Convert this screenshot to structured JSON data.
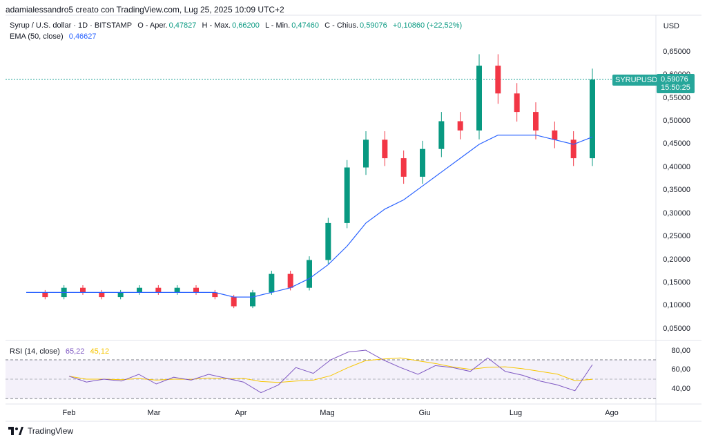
{
  "header": {
    "text": "adamialessandro5 creato con TradingView.com, Lug 25, 2025 10:09 UTC+2"
  },
  "legend": {
    "symbol": "Syrup / U.S. dollar · 1D · BITSTAMP",
    "open_label": "O - Aper.",
    "open": "0,47827",
    "high_label": "H - Max.",
    "high": "0,66200",
    "low_label": "L - Min.",
    "low": "0,47460",
    "close_label": "C - Chius.",
    "close": "0,59076",
    "change": "+0,10860 (+22,52%)",
    "ema_label": "EMA (50, close)",
    "ema_value": "0,46627"
  },
  "currency": "USD",
  "price_axis": [
    "0,65000",
    "0,60000",
    "0,55000",
    "0,50000",
    "0,45000",
    "0,40000",
    "0,35000",
    "0,30000",
    "0,25000",
    "0,20000",
    "0,15000",
    "0,10000",
    "0,05000"
  ],
  "last_price": {
    "ticker": "SYRUPUSD",
    "price": "0,59076",
    "countdown": "15:50:25"
  },
  "rsi": {
    "label": "RSI (14, close)",
    "value": "65,22",
    "ma_value": "45,12",
    "axis": [
      "80,00",
      "60,00",
      "40,00"
    ]
  },
  "time_axis": [
    "Feb",
    "Mar",
    "Apr",
    "Mag",
    "Giu",
    "Lug",
    "Ago"
  ],
  "footer": {
    "brand": "TradingView"
  },
  "colors": {
    "up": "#089981",
    "down": "#f23645",
    "ema": "#2962ff",
    "rsi": "#7e57c2",
    "rsi_ma": "#f7c600"
  },
  "chart_data": {
    "type": "line",
    "x": [
      0,
      1,
      2,
      3,
      4,
      5,
      6,
      7,
      8,
      9,
      10,
      11,
      12,
      13,
      14,
      15,
      16,
      17,
      18,
      19,
      20,
      21,
      22,
      23,
      24,
      25,
      26,
      27,
      28,
      29,
      30
    ],
    "series": [
      {
        "name": "SYRUPUSD",
        "values": [
          0.13,
          0.12,
          0.14,
          0.13,
          0.12,
          0.13,
          0.14,
          0.13,
          0.14,
          0.13,
          0.12,
          0.1,
          0.13,
          0.17,
          0.14,
          0.2,
          0.28,
          0.4,
          0.46,
          0.42,
          0.38,
          0.44,
          0.5,
          0.48,
          0.62,
          0.56,
          0.52,
          0.48,
          0.46,
          0.42,
          0.59
        ]
      },
      {
        "name": "EMA (50, close)",
        "values": [
          0.13,
          0.13,
          0.13,
          0.13,
          0.13,
          0.13,
          0.13,
          0.13,
          0.13,
          0.13,
          0.13,
          0.12,
          0.12,
          0.13,
          0.14,
          0.16,
          0.19,
          0.23,
          0.28,
          0.31,
          0.33,
          0.36,
          0.39,
          0.42,
          0.45,
          0.47,
          0.47,
          0.47,
          0.46,
          0.45,
          0.466
        ]
      }
    ],
    "rsi_values": [
      53,
      47,
      50,
      48,
      55,
      45,
      52,
      49,
      55,
      51,
      47,
      36,
      44,
      62,
      56,
      70,
      78,
      80,
      70,
      62,
      55,
      64,
      62,
      58,
      72,
      58,
      54,
      48,
      44,
      38,
      65
    ],
    "ylim": [
      0.02,
      0.68
    ]
  }
}
